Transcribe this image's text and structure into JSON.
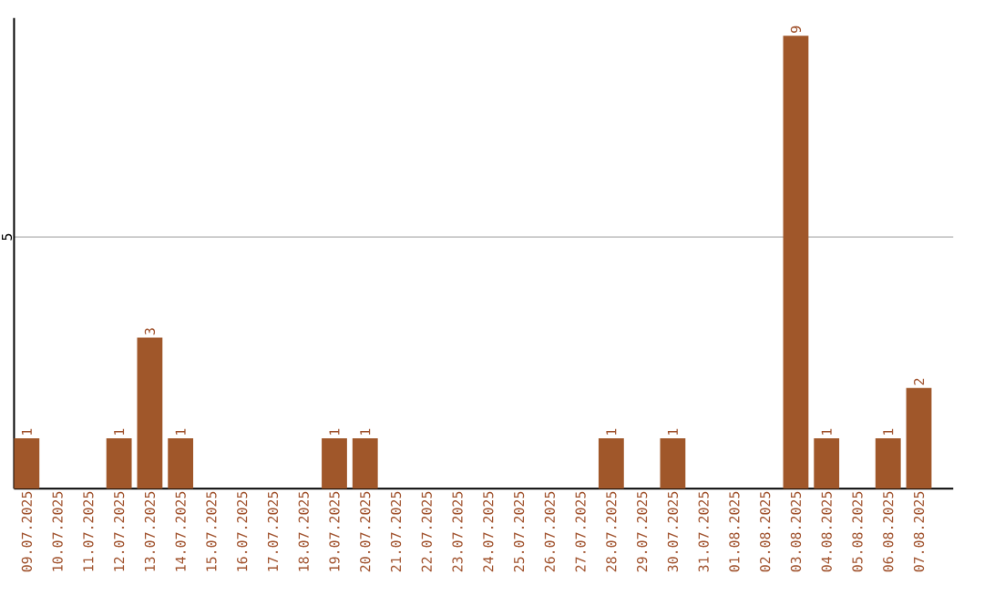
{
  "chart_data": {
    "type": "bar",
    "categories": [
      "09.07.2025",
      "10.07.2025",
      "11.07.2025",
      "12.07.2025",
      "13.07.2025",
      "14.07.2025",
      "15.07.2025",
      "16.07.2025",
      "17.07.2025",
      "18.07.2025",
      "19.07.2025",
      "20.07.2025",
      "21.07.2025",
      "22.07.2025",
      "23.07.2025",
      "24.07.2025",
      "25.07.2025",
      "26.07.2025",
      "27.07.2025",
      "28.07.2025",
      "29.07.2025",
      "30.07.2025",
      "31.07.2025",
      "01.08.2025",
      "02.08.2025",
      "03.08.2025",
      "04.08.2025",
      "05.08.2025",
      "06.08.2025",
      "07.08.2025"
    ],
    "values": [
      1,
      0,
      0,
      1,
      3,
      1,
      0,
      0,
      0,
      0,
      1,
      1,
      0,
      0,
      0,
      0,
      0,
      0,
      0,
      1,
      0,
      1,
      0,
      0,
      0,
      9,
      1,
      0,
      1,
      2
    ],
    "value_labels": [
      "1",
      null,
      null,
      "1",
      "3",
      "1",
      null,
      null,
      null,
      null,
      "1",
      "1",
      null,
      null,
      null,
      null,
      null,
      null,
      null,
      "1",
      null,
      "1",
      null,
      null,
      null,
      "9",
      "1",
      null,
      "1",
      "2"
    ],
    "color": "#a0572a",
    "ylim": [
      0,
      9.35
    ],
    "yticks": [
      5
    ],
    "grid": "y"
  }
}
